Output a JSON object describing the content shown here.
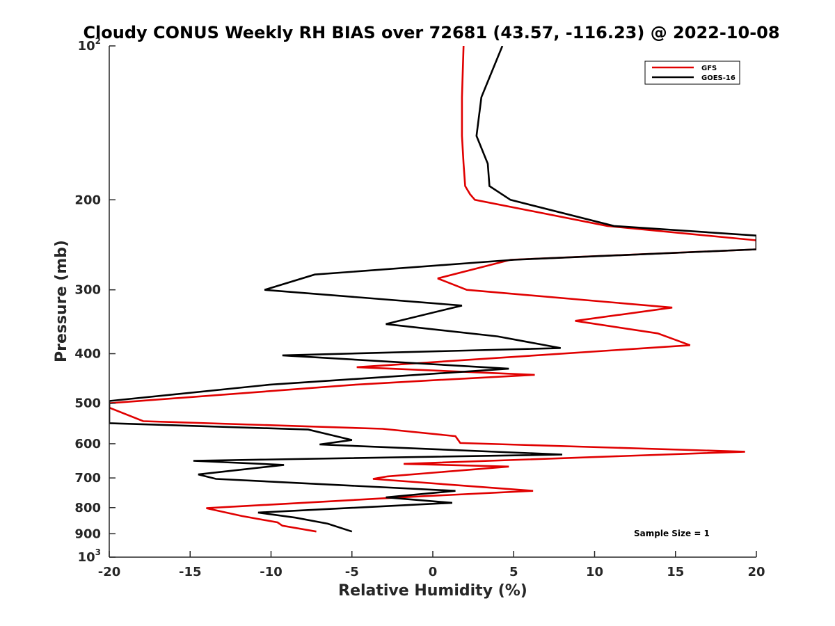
{
  "chart_data": {
    "type": "line",
    "title": "Cloudy CONUS Weekly RH BIAS over 72681 (43.57, -116.23) @ 2022-10-08",
    "xlabel": "Relative Humidity (%)",
    "ylabel": "Pressure (mb)",
    "xlim": [
      -20,
      20
    ],
    "ylim": [
      100,
      1000
    ],
    "yscale": "log",
    "y_reversed": true,
    "x_ticks": [
      -20,
      -15,
      -10,
      -5,
      0,
      5,
      10,
      15,
      20
    ],
    "x_tick_labels": [
      "-20",
      "-15",
      "-10",
      "-5",
      "0",
      "5",
      "10",
      "15",
      "20"
    ],
    "y_ticks": [
      200,
      300,
      400,
      500,
      600,
      700,
      800,
      900
    ],
    "y_tick_labels": [
      "200",
      "300",
      "400",
      "500",
      "600",
      "700",
      "800",
      "900"
    ],
    "y_decade_ticks": [
      {
        "value": 100,
        "base": "10",
        "exp": "2"
      },
      {
        "value": 1000,
        "base": "10",
        "exp": "3"
      }
    ],
    "grid": false,
    "legend_position": "top-right",
    "annotation": "Sample Size = 1",
    "series": [
      {
        "name": "GFS",
        "color": "#e00000",
        "x": [
          1.9,
          1.8,
          1.8,
          1.9,
          2.0,
          2.3,
          2.6,
          10.8,
          20,
          20,
          4.8,
          0.3,
          2.1,
          14.8,
          8.8,
          13.9,
          15.9,
          -4.7,
          6.3,
          0.5,
          -4.8,
          -20.0,
          -20.0,
          -17.9,
          -3.1,
          1.4,
          1.7,
          19.3,
          -1.8,
          4.7,
          -2.8,
          -3.7,
          6.2,
          -1.7,
          -14.0,
          -11.8,
          -9.6,
          -9.3,
          -7.2
        ],
        "y": [
          100,
          126,
          150,
          170,
          188,
          195,
          200,
          225,
          240,
          250,
          262,
          285,
          300,
          325,
          345,
          365,
          385,
          425,
          440,
          450,
          460,
          500,
          510,
          542,
          561,
          580,
          598,
          622,
          657,
          665,
          695,
          703,
          742,
          763,
          802,
          831,
          855,
          868,
          891
        ]
      },
      {
        "name": "GOES-16",
        "color": "#000000",
        "x": [
          4.3,
          3.0,
          2.7,
          3.4,
          3.5,
          4.8,
          11.2,
          20,
          20,
          5.0,
          -7.3,
          -10.4,
          1.8,
          -2.9,
          4.0,
          7.9,
          -9.3,
          4.7,
          -10.1,
          -20.0,
          -20.0,
          -7.7,
          -5.0,
          -7.0,
          8.0,
          -14.8,
          -9.2,
          -14.5,
          -13.4,
          1.4,
          -2.9,
          1.2,
          -10.8,
          -8.5,
          -6.5,
          -5.0
        ],
        "y": [
          100,
          126,
          150,
          170,
          188,
          200,
          225,
          235,
          250,
          262,
          280,
          300,
          322,
          350,
          370,
          390,
          403,
          428,
          460,
          495,
          547,
          563,
          590,
          602,
          630,
          648,
          660,
          689,
          703,
          742,
          764,
          783,
          818,
          837,
          860,
          891
        ]
      }
    ]
  }
}
